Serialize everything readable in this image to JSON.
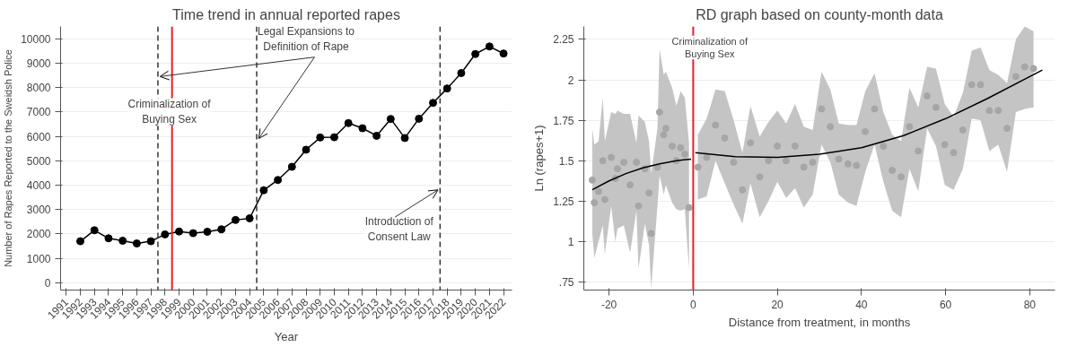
{
  "chart_data": [
    {
      "type": "line",
      "title": "Time trend in annual reported rapes",
      "xlabel": "Year",
      "ylabel": "Number of Rapes Reported to the Sweidsh Police",
      "x": [
        1992,
        1993,
        1994,
        1995,
        1996,
        1997,
        1998,
        1999,
        2000,
        2001,
        2002,
        2003,
        2004,
        2005,
        2006,
        2007,
        2008,
        2009,
        2010,
        2011,
        2012,
        2013,
        2014,
        2015,
        2016,
        2017,
        2018,
        2019,
        2020,
        2021,
        2022
      ],
      "series": [
        {
          "color": "#000000",
          "values": [
            1700,
            2150,
            1820,
            1720,
            1610,
            1700,
            1980,
            2100,
            2030,
            2090,
            2190,
            2570,
            2640,
            3790,
            4210,
            4750,
            5450,
            5950,
            5960,
            6540,
            6330,
            6020,
            6710,
            5930,
            6720,
            7370,
            7960,
            8590,
            9370,
            9680,
            9390
          ]
        }
      ],
      "marker": "circle",
      "line_style": "solid",
      "xlim": [
        1990.6,
        2022.6
      ],
      "ylim": [
        -300,
        10500
      ],
      "xticks": [
        1991,
        1992,
        1993,
        1994,
        1995,
        1996,
        1997,
        1998,
        1999,
        2000,
        2001,
        2002,
        2003,
        2004,
        2005,
        2006,
        2007,
        2008,
        2009,
        2010,
        2011,
        2012,
        2013,
        2014,
        2015,
        2016,
        2017,
        2018,
        2019,
        2020,
        2021,
        2022
      ],
      "yticks": [
        0,
        1000,
        2000,
        3000,
        4000,
        5000,
        6000,
        7000,
        8000,
        9000,
        10000
      ],
      "grid": "y",
      "ref_lines": [
        {
          "axis": "x",
          "value": 1997.5,
          "color": "#333333",
          "line_style": "dashed"
        },
        {
          "axis": "x",
          "value": 1998.5,
          "color": "#e8202a",
          "line_style": "solid"
        },
        {
          "axis": "x",
          "value": 2004.5,
          "color": "#333333",
          "line_style": "dashed"
        },
        {
          "axis": "x",
          "value": 2017.5,
          "color": "#333333",
          "line_style": "dashed"
        }
      ],
      "annotations": [
        {
          "text": "Criminalization of\nBuying Sex",
          "x": 1998.5,
          "y": 7000
        },
        {
          "text": "Legal Expansions to\nDefinition of Rape",
          "x": 2004.5,
          "y": 10000
        },
        {
          "text": "Introduction of\nConsent Law",
          "x": 2017.5,
          "y": 2200
        }
      ]
    },
    {
      "type": "scatter",
      "title": "RD graph based on county-month data",
      "xlabel": "Distance from treatment, in months",
      "ylabel": "Ln (rapes+1)",
      "xlim": [
        -26,
        86
      ],
      "ylim": [
        0.7,
        2.33
      ],
      "xticks": [
        -20,
        0,
        20,
        40,
        60,
        80
      ],
      "yticks": [
        {
          "value": 0.75,
          "label": ".75"
        },
        1,
        {
          "value": 1.25,
          "label": "1.25"
        },
        {
          "value": 1.5,
          "label": "1.5"
        },
        {
          "value": 1.75,
          "label": "1.75"
        },
        2,
        {
          "value": 2.25,
          "label": "2.25"
        }
      ],
      "grid": "y",
      "series": [
        {
          "type": "scatter",
          "marker": "circle",
          "color": "#a6a6a6",
          "x": [
            -24,
            -23.5,
            -22.5,
            -21.5,
            -21,
            -19.5,
            -18.5,
            -18,
            -16.5,
            -15,
            -13.5,
            -13,
            -11.5,
            -10.5,
            -10,
            -8.5,
            -8,
            -7,
            -6.5,
            -5,
            -4,
            -3,
            -2,
            -1
          ],
          "values": [
            1.38,
            1.24,
            1.31,
            1.5,
            1.26,
            1.52,
            1.39,
            1.45,
            1.49,
            1.35,
            1.49,
            1.22,
            1.45,
            1.3,
            1.05,
            1.46,
            1.8,
            1.66,
            1.7,
            1.59,
            1.5,
            1.58,
            1.54,
            1.21
          ],
          "upper": [
            1.7,
            1.6,
            1.62,
            1.89,
            1.62,
            1.8,
            1.79,
            1.81,
            1.79,
            1.79,
            1.61,
            1.78,
            1.74,
            1.62,
            1.42,
            1.7,
            2.19,
            2.03,
            2.05,
            1.95,
            1.84,
            1.93,
            1.89,
            1.61
          ],
          "lower": [
            1.05,
            0.9,
            1.0,
            1.1,
            0.92,
            1.22,
            1.0,
            1.08,
            1.1,
            0.93,
            1.19,
            0.83,
            1.11,
            0.98,
            0.71,
            1.22,
            1.41,
            1.29,
            1.35,
            1.24,
            1.2,
            1.19,
            1.2,
            0.83
          ]
        },
        {
          "type": "scatter",
          "marker": "circle",
          "color": "#a6a6a6",
          "x": [
            1.1,
            3.2,
            5.3,
            7.5,
            9.6,
            11.7,
            13.6,
            15.8,
            17.9,
            20.0,
            22.1,
            24.2,
            26.3,
            28.4,
            30.5,
            32.6,
            34.6,
            36.8,
            38.8,
            40.9,
            43.1,
            45.2,
            47.3,
            49.4,
            51.4,
            53.5,
            55.6,
            57.7,
            59.8,
            61.9,
            64.1,
            66.2,
            68.3,
            70.4,
            72.5,
            74.6,
            76.7,
            78.8,
            80.9
          ],
          "values": [
            1.46,
            1.52,
            1.72,
            1.64,
            1.49,
            1.32,
            1.61,
            1.4,
            1.5,
            1.59,
            1.5,
            1.59,
            1.46,
            1.49,
            1.82,
            1.71,
            1.51,
            1.48,
            1.47,
            1.68,
            1.82,
            1.59,
            1.44,
            1.4,
            1.71,
            1.56,
            1.9,
            1.83,
            1.6,
            1.55,
            1.69,
            1.97,
            1.97,
            1.81,
            1.81,
            1.7,
            2.02,
            2.08,
            2.07
          ],
          "upper": [
            1.66,
            1.76,
            1.94,
            1.93,
            1.75,
            1.55,
            1.84,
            1.65,
            1.74,
            1.81,
            1.73,
            1.85,
            1.71,
            1.69,
            2.05,
            1.94,
            1.73,
            1.72,
            1.72,
            1.93,
            2.04,
            1.8,
            1.66,
            1.62,
            1.95,
            1.83,
            2.08,
            2.07,
            1.85,
            1.77,
            1.92,
            2.18,
            2.2,
            2.06,
            2.03,
            1.98,
            2.25,
            2.33,
            2.3
          ],
          "lower": [
            1.26,
            1.28,
            1.5,
            1.36,
            1.23,
            1.11,
            1.36,
            1.15,
            1.25,
            1.37,
            1.27,
            1.33,
            1.21,
            1.29,
            1.6,
            1.49,
            1.29,
            1.24,
            1.22,
            1.43,
            1.6,
            1.37,
            1.19,
            1.15,
            1.45,
            1.31,
            1.7,
            1.59,
            1.35,
            1.32,
            1.45,
            1.76,
            1.75,
            1.56,
            1.6,
            1.43,
            1.8,
            1.82,
            1.83
          ]
        },
        {
          "type": "line",
          "color": "#000000",
          "x": [
            -24,
            -20,
            -16,
            -12,
            -8,
            -4,
            -0.5
          ],
          "values": [
            1.32,
            1.375,
            1.42,
            1.455,
            1.48,
            1.5,
            1.51
          ]
        },
        {
          "type": "line",
          "color": "#000000",
          "x": [
            0.5,
            10,
            20,
            30,
            40,
            50,
            60,
            70,
            80,
            83
          ],
          "values": [
            1.55,
            1.525,
            1.52,
            1.54,
            1.58,
            1.655,
            1.76,
            1.885,
            2.02,
            2.06
          ]
        }
      ],
      "ref_lines": [
        {
          "axis": "x",
          "value": 0,
          "color": "#e8202a",
          "line_style": "solid"
        }
      ],
      "annotations": [
        {
          "text": "Criminalization of\nBuying Sex",
          "x": 0,
          "y": 2.2
        }
      ]
    }
  ]
}
